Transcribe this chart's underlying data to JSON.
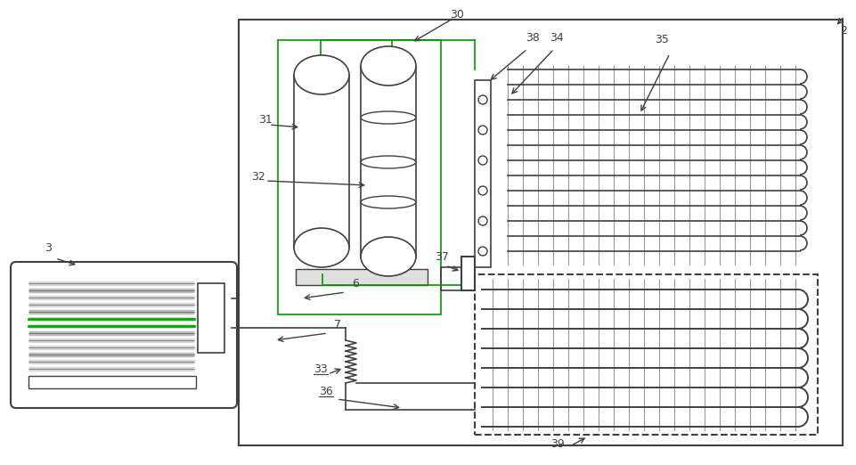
{
  "bg_color": "#ffffff",
  "line_color": "#404040",
  "green_color": "#009900",
  "gray_color": "#888888",
  "light_gray": "#cccccc"
}
